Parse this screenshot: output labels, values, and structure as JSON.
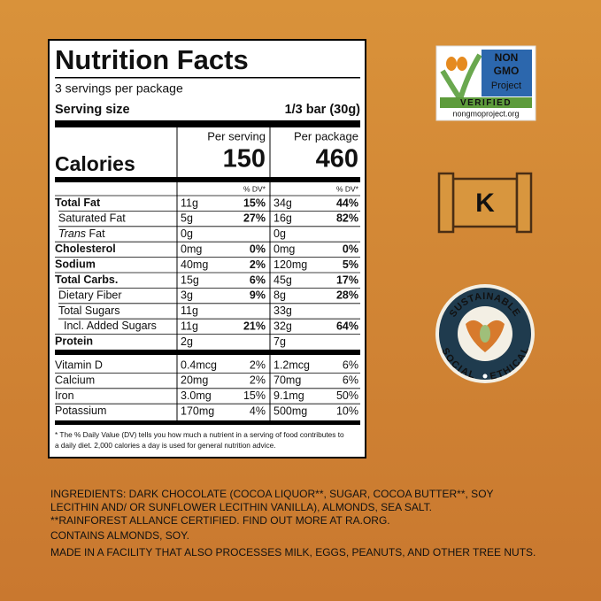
{
  "label": {
    "title": "Nutrition Facts",
    "servings": "3 servings per package",
    "serving_size_label": "Serving size",
    "serving_size_value": "1/3 bar (30g)",
    "columns": [
      "Per serving",
      "Per package"
    ],
    "calories_label": "Calories",
    "calories": [
      "150",
      "460"
    ],
    "dv_headers": [
      "% DV*",
      "% DV*"
    ],
    "nutrients": [
      {
        "name": "Total Fat",
        "serving_amount": "11g",
        "serving_dv": "15%",
        "package_amount": "34g",
        "package_dv": "44%",
        "sub": [
          {
            "name": "Saturated Fat",
            "serving_amount": "5g",
            "serving_dv": "27%",
            "package_amount": "16g",
            "package_dv": "82%"
          },
          {
            "name_italic": "Trans",
            "name": "Fat",
            "serving_amount": "0g",
            "package_amount": "0g"
          }
        ]
      },
      {
        "name": "Cholesterol",
        "serving_amount": "0mg",
        "serving_dv": "0%",
        "package_amount": "0mg",
        "package_dv": "0%"
      },
      {
        "name": "Sodium",
        "serving_amount": "40mg",
        "serving_dv": "2%",
        "package_amount": "120mg",
        "package_dv": "5%"
      },
      {
        "name": "Total Carbs.",
        "serving_amount": "15g",
        "serving_dv": "6%",
        "package_amount": "45g",
        "package_dv": "17%",
        "sub": [
          {
            "name": "Dietary Fiber",
            "serving_amount": "3g",
            "serving_dv": "9%",
            "package_amount": "8g",
            "package_dv": "28%"
          },
          {
            "name": "Total Sugars",
            "serving_amount": "11g",
            "package_amount": "33g",
            "sub": [
              {
                "name": "Incl. Added Sugars",
                "serving_amount": "11g",
                "serving_dv": "21%",
                "package_amount": "32g",
                "package_dv": "64%"
              }
            ]
          }
        ]
      },
      {
        "name": "Protein",
        "serving_amount": "2g",
        "package_amount": "7g"
      }
    ],
    "vitamins": [
      {
        "name": "Vitamin D",
        "serving_amount": "0.4mcg",
        "serving_dv": "2%",
        "package_amount": "1.2mcg",
        "package_dv": "6%"
      },
      {
        "name": "Calcium",
        "serving_amount": "20mg",
        "serving_dv": "2%",
        "package_amount": "70mg",
        "package_dv": "6%"
      },
      {
        "name": "Iron",
        "serving_amount": "3.0mg",
        "serving_dv": "15%",
        "package_amount": "9.1mg",
        "package_dv": "50%"
      },
      {
        "name": "Potassium",
        "serving_amount": "170mg",
        "serving_dv": "4%",
        "package_amount": "500mg",
        "package_dv": "10%"
      }
    ],
    "footnote": [
      "* The % Daily Value (DV) tells you how much a nutrient in a serving of food contributes to",
      "a daily diet. 2,000 calories a day is used for general nutrition advice."
    ]
  },
  "ingredients": [
    "INGREDIENTS: DARK CHOCOLATE (COCOA LIQUOR**, SUGAR, COCOA BUTTER**, SOY",
    "LECITHIN AND/ OR SUNFLOWER LECITHIN VANILLA), ALMONDS, SEA SALT.",
    "**RAINFOREST ALLANCE CERTIFIED. FIND OUT MORE AT RA.ORG.",
    "CONTAINS ALMONDS, SOY.",
    "MADE IN A FACILITY THAT ALSO PROCESSES MILK, EGGS, PEANUTS, AND OTHER TREE NUTS."
  ],
  "badges": {
    "non_gmo": [
      "NON",
      "GMO",
      "Project",
      "VERIFIED",
      "nongmoproject.org"
    ],
    "kosher": "K",
    "sustainable": [
      "SUSTAINABLE",
      "SOCIAL",
      "ETHICAL"
    ]
  }
}
